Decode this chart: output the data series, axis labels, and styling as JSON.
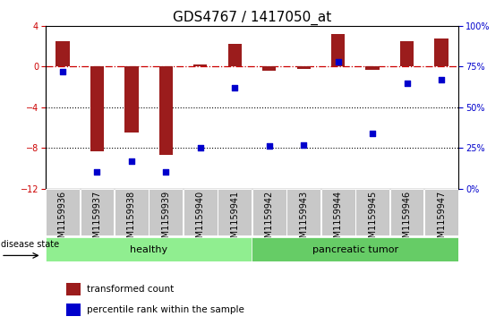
{
  "title": "GDS4767 / 1417050_at",
  "samples": [
    "GSM1159936",
    "GSM1159937",
    "GSM1159938",
    "GSM1159939",
    "GSM1159940",
    "GSM1159941",
    "GSM1159942",
    "GSM1159943",
    "GSM1159944",
    "GSM1159945",
    "GSM1159946",
    "GSM1159947"
  ],
  "transformed_count": [
    2.5,
    -8.3,
    -6.5,
    -8.7,
    0.2,
    2.2,
    -0.4,
    -0.2,
    3.2,
    -0.3,
    2.5,
    2.8
  ],
  "percentile_rank": [
    72,
    10,
    17,
    10,
    25,
    62,
    26,
    27,
    78,
    34,
    65,
    67
  ],
  "ylim_left": [
    -12,
    4
  ],
  "ylim_right": [
    0,
    100
  ],
  "yticks_left": [
    -12,
    -8,
    -4,
    0,
    4
  ],
  "yticks_right": [
    0,
    25,
    50,
    75,
    100
  ],
  "bar_color": "#9B1C1C",
  "dot_color": "#0000CC",
  "hline_color": "#CC0000",
  "dotted_line_color": "#000000",
  "healthy_label": "healthy",
  "tumor_label": "pancreatic tumor",
  "healthy_color": "#90EE90",
  "tumor_color": "#66CC66",
  "disease_state_label": "disease state",
  "legend_bar_label": "transformed count",
  "legend_dot_label": "percentile rank within the sample",
  "tick_label_fontsize": 7,
  "title_fontsize": 11,
  "bar_width": 0.4,
  "n_healthy": 6,
  "n_tumor": 6
}
